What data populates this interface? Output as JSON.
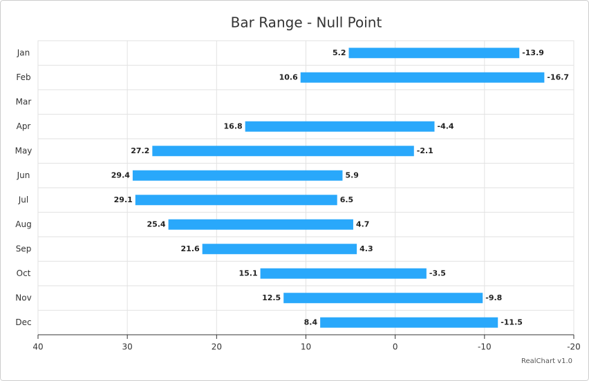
{
  "chart_data": {
    "type": "bar_range",
    "title": "Bar Range - Null Point",
    "categories": [
      "Jan",
      "Feb",
      "Mar",
      "Apr",
      "May",
      "Jun",
      "Jul",
      "Aug",
      "Sep",
      "Oct",
      "Nov",
      "Dec"
    ],
    "values": [
      [
        5.2,
        -13.9
      ],
      [
        10.6,
        -16.7
      ],
      null,
      [
        16.8,
        -4.4
      ],
      [
        27.2,
        -2.1
      ],
      [
        29.4,
        5.9
      ],
      [
        29.1,
        6.5
      ],
      [
        25.4,
        4.7
      ],
      [
        21.6,
        4.3
      ],
      [
        15.1,
        -3.5
      ],
      [
        12.5,
        -9.8
      ],
      [
        8.4,
        -11.5
      ]
    ],
    "color": "#29a8fb",
    "xlim": [
      40,
      -20
    ],
    "xticks": [
      40,
      30,
      20,
      10,
      0,
      -10,
      -20
    ],
    "grid": true,
    "credit": "RealChart v1.0"
  }
}
